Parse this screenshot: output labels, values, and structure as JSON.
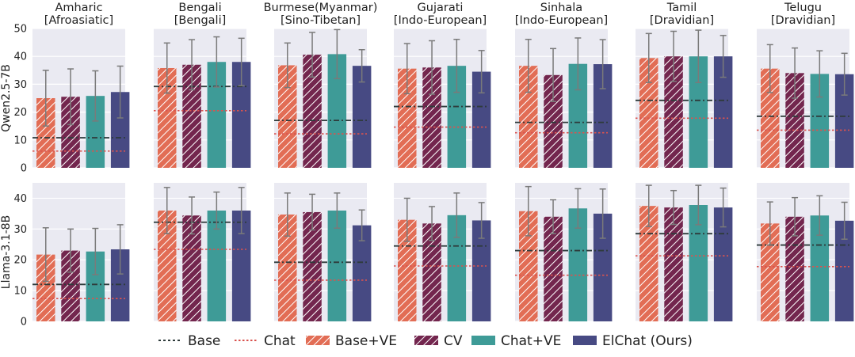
{
  "chart_data": {
    "type": "bar",
    "languages": [
      {
        "name": "Amharic",
        "family": "[Afroasiatic]"
      },
      {
        "name": "Bengali",
        "family": "[Bengali]"
      },
      {
        "name": "Burmese(Myanmar)",
        "family": "[Sino-Tibetan]"
      },
      {
        "name": "Gujarati",
        "family": "[Indo-European]"
      },
      {
        "name": "Sinhala",
        "family": "[Indo-European]"
      },
      {
        "name": "Tamil",
        "family": "[Dravidian]"
      },
      {
        "name": "Telugu",
        "family": "[Dravidian]"
      }
    ],
    "series": [
      {
        "name": "Base+VE",
        "color": "#e26d55",
        "hatch": true
      },
      {
        "name": "CV",
        "color": "#73264e",
        "hatch": true
      },
      {
        "name": "Chat+VE",
        "color": "#3e9b97",
        "hatch": false
      },
      {
        "name": "ElChat (Ours)",
        "color": "#474a83",
        "hatch": false
      }
    ],
    "reference_lines": [
      {
        "name": "Base",
        "style": "dashdot",
        "color": "#2e3b3b"
      },
      {
        "name": "Chat",
        "style": "dotted",
        "color": "#d9534f"
      }
    ],
    "rows": [
      {
        "model": "Qwen2.5-7B",
        "ylim": [
          0,
          50
        ],
        "yticks": [
          0,
          10,
          20,
          30,
          40,
          50
        ],
        "panels": [
          {
            "values": [
              25.0,
              25.5,
              25.8,
              27.2
            ],
            "errors": [
              10.0,
              10.0,
              9.0,
              9.3
            ],
            "base": 10.8,
            "chat": 6.0
          },
          {
            "values": [
              35.8,
              37.0,
              38.0,
              38.0
            ],
            "errors": [
              9.0,
              9.0,
              9.0,
              8.5
            ],
            "base": 29.2,
            "chat": 20.5
          },
          {
            "values": [
              36.8,
              40.6,
              40.8,
              36.6
            ],
            "errors": [
              8.0,
              8.0,
              8.8,
              5.8
            ],
            "base": 17.0,
            "chat": 12.2
          },
          {
            "values": [
              35.6,
              36.0,
              36.6,
              34.5
            ],
            "errors": [
              9.0,
              9.6,
              9.5,
              7.6
            ],
            "base": 22.0,
            "chat": 14.6
          },
          {
            "values": [
              36.6,
              33.3,
              37.3,
              37.2
            ],
            "errors": [
              9.5,
              9.5,
              9.3,
              8.8
            ],
            "base": 16.3,
            "chat": 12.6
          },
          {
            "values": [
              39.4,
              40.0,
              40.0,
              40.0
            ],
            "errors": [
              8.8,
              9.0,
              9.4,
              7.5
            ],
            "base": 24.2,
            "chat": 17.8
          },
          {
            "values": [
              35.6,
              34.0,
              33.7,
              33.6
            ],
            "errors": [
              8.6,
              9.0,
              8.3,
              7.5
            ],
            "base": 18.5,
            "chat": 13.5
          }
        ]
      },
      {
        "model": "Llama-3.1-8B",
        "ylim": [
          0,
          45
        ],
        "yticks": [
          0,
          10,
          20,
          30,
          40
        ],
        "panels": [
          {
            "values": [
              21.7,
              23.0,
              22.7,
              23.4
            ],
            "errors": [
              8.7,
              7.0,
              7.5,
              8.0
            ],
            "base": 12.0,
            "chat": 7.4
          },
          {
            "values": [
              36.0,
              34.4,
              36.0,
              36.0
            ],
            "errors": [
              7.5,
              6.0,
              6.0,
              7.5
            ],
            "base": 32.2,
            "chat": 23.4
          },
          {
            "values": [
              34.7,
              35.5,
              36.0,
              31.2
            ],
            "errors": [
              7.0,
              5.8,
              5.7,
              5.0
            ],
            "base": 19.2,
            "chat": 13.4
          },
          {
            "values": [
              33.0,
              31.8,
              34.5,
              32.8
            ],
            "errors": [
              7.0,
              5.5,
              7.2,
              5.8
            ],
            "base": 24.5,
            "chat": 18.0
          },
          {
            "values": [
              35.8,
              34.0,
              36.7,
              35.0
            ],
            "errors": [
              8.0,
              5.5,
              6.4,
              8.0
            ],
            "base": 23.0,
            "chat": 15.0
          },
          {
            "values": [
              37.5,
              37.0,
              37.8,
              37.0
            ],
            "errors": [
              6.7,
              5.5,
              6.4,
              6.3
            ],
            "base": 28.5,
            "chat": 21.3
          },
          {
            "values": [
              31.8,
              34.0,
              34.4,
              32.7
            ],
            "errors": [
              7.0,
              6.2,
              6.4,
              6.0
            ],
            "base": 24.8,
            "chat": 17.8
          }
        ]
      }
    ],
    "legend": {
      "position": "bottom-center",
      "items": [
        "Base",
        "Chat",
        "Base+VE",
        "CV",
        "Chat+VE",
        "ElChat (Ours)"
      ]
    }
  }
}
